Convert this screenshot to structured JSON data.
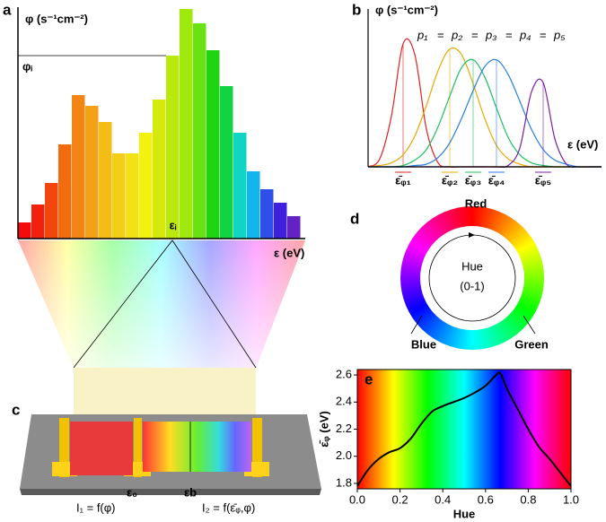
{
  "chart_data": [
    {
      "type": "bar",
      "panel": "a",
      "ylabel": "φ (s⁻¹cm⁻²)",
      "xlabel": "ε (eV)",
      "level_label": "φᵢ",
      "point_label": "εᵢ",
      "values": [
        18,
        38,
        62,
        105,
        160,
        148,
        130,
        95,
        95,
        118,
        155,
        204,
        256,
        240,
        210,
        170,
        118,
        75,
        55,
        40,
        25
      ],
      "colors": [
        "hsl(0,90%,50%)",
        "hsl(5,90%,50%)",
        "hsl(15,90%,50%)",
        "hsl(25,90%,50%)",
        "hsl(30,90%,52%)",
        "hsl(38,90%,52%)",
        "hsl(45,90%,52%)",
        "hsl(50,90%,52%)",
        "hsl(55,90%,52%)",
        "hsl(60,90%,50%)",
        "hsl(65,90%,48%)",
        "hsl(72,90%,48%)",
        "hsl(80,90%,48%)",
        "hsl(95,85%,48%)",
        "hsl(115,85%,45%)",
        "hsl(135,85%,45%)",
        "hsl(175,85%,45%)",
        "hsl(195,85%,50%)",
        "hsl(230,80%,55%)",
        "hsl(250,75%,50%)",
        "hsl(265,70%,45%)"
      ],
      "ylim": [
        0,
        258
      ]
    },
    {
      "type": "line",
      "panel": "b",
      "frame": "axes",
      "ylabel": "φ (s⁻¹cm⁻²)",
      "xlabel": "ε (eV)",
      "equals": "=",
      "x": [
        0,
        0.5,
        1,
        1.5,
        2,
        2.5,
        3,
        3.5,
        4,
        4.5,
        5,
        5.5,
        6,
        6.5,
        7,
        7.5,
        8,
        8.5,
        9,
        9.5,
        10
      ],
      "xlim": [
        0,
        10
      ],
      "ylim": [
        0,
        1.18
      ],
      "series": [
        {
          "name": "ε̄ᵩ₁",
          "power": "p₁",
          "color": "#e02020",
          "values": [
            0,
            0.06,
            0.38,
            0.92,
            0.84,
            0.28,
            0.03,
            0,
            0,
            0,
            0,
            0,
            0,
            0,
            0,
            0,
            0,
            0,
            0,
            0,
            0
          ]
        },
        {
          "name": "ε̄ᵩ₂",
          "power": "p₂",
          "color": "#e8a800",
          "values": [
            0,
            0.01,
            0.03,
            0.09,
            0.23,
            0.46,
            0.72,
            0.88,
            0.84,
            0.62,
            0.36,
            0.16,
            0.06,
            0.02,
            0,
            0,
            0,
            0,
            0,
            0,
            0
          ]
        },
        {
          "name": "ε̄ᵩ₃",
          "power": "p₃",
          "color": "#22c060",
          "values": [
            0,
            0,
            0,
            0.01,
            0.05,
            0.13,
            0.3,
            0.53,
            0.74,
            0.8,
            0.67,
            0.44,
            0.22,
            0.09,
            0.03,
            0.01,
            0,
            0,
            0,
            0,
            0
          ]
        },
        {
          "name": "ε̄ᵩ₄",
          "power": "p₄",
          "color": "#2a7de0",
          "values": [
            0,
            0,
            0,
            0,
            0.01,
            0.02,
            0.07,
            0.18,
            0.36,
            0.57,
            0.75,
            0.8,
            0.69,
            0.49,
            0.28,
            0.13,
            0.05,
            0.02,
            0,
            0,
            0
          ]
        },
        {
          "name": "ε̄ᵩ₅",
          "power": "p₅",
          "color": "#7a1fa8",
          "values": [
            0,
            0,
            0,
            0,
            0,
            0,
            0,
            0,
            0,
            0,
            0,
            0,
            0.01,
            0.14,
            0.56,
            0.63,
            0.21,
            0.02,
            0,
            0,
            0
          ]
        }
      ]
    },
    {
      "type": "line",
      "panel": "e",
      "frame": "box",
      "background": "hue-gradient",
      "xlabel": "Hue",
      "ylabel": "ε̄ᵩ (eV)",
      "x": [
        0,
        0.05,
        0.1,
        0.15,
        0.2,
        0.25,
        0.3,
        0.35,
        0.4,
        0.45,
        0.5,
        0.55,
        0.6,
        0.65,
        0.67,
        0.7,
        0.75,
        0.8,
        0.85,
        0.9,
        0.95,
        1
      ],
      "xlim": [
        0,
        1
      ],
      "ylim": [
        1.76,
        2.64
      ],
      "xticks": [
        {
          "value": 0,
          "label": "0.0"
        },
        0.2,
        0.4,
        0.6,
        0.8,
        {
          "value": 1,
          "label": "1.0"
        }
      ],
      "yticks": [
        1.8,
        {
          "value": 2,
          "label": "2.0"
        },
        2.2,
        2.4,
        2.6
      ],
      "series": [
        {
          "color": "#000000",
          "values": [
            1.78,
            1.9,
            1.98,
            2.03,
            2.06,
            2.13,
            2.24,
            2.33,
            2.37,
            2.4,
            2.43,
            2.47,
            2.52,
            2.6,
            2.61,
            2.5,
            2.35,
            2.2,
            2.07,
            1.98,
            1.88,
            1.78
          ]
        }
      ]
    }
  ],
  "device": {
    "panel": "c",
    "labels": [
      "ε₀",
      "εb"
    ],
    "eq1": "I₁ = f(φ)",
    "eq2": "I₂ = f(ε̄ᵩ,φ)",
    "eq2_color": "#c01818"
  },
  "wheel": {
    "panel": "d",
    "center": [
      "Hue",
      "(0-1)"
    ],
    "labels": [
      {
        "text": "Red",
        "color": "#e01010"
      },
      {
        "text": "Green",
        "color": "#22cc22"
      },
      {
        "text": "Blue",
        "color": "#1a3fe0"
      }
    ]
  }
}
